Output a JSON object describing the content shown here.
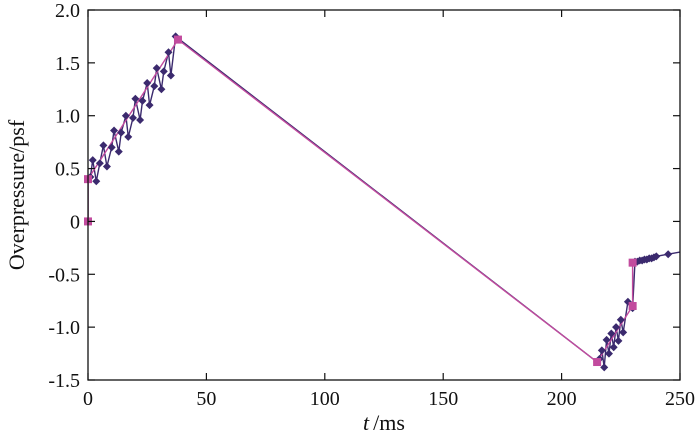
{
  "chart_data": {
    "type": "line",
    "title": "",
    "xlabel": {
      "symbol": "t",
      "unit": "/ms"
    },
    "ylabel": "Overpressure/psf",
    "xlim": [
      0,
      250
    ],
    "ylim": [
      -1.5,
      2.0
    ],
    "xticks": [
      0,
      50,
      100,
      150,
      200,
      250
    ],
    "yticks": [
      -1.5,
      -1.0,
      -0.5,
      0,
      0.5,
      1.0,
      1.5,
      2.0
    ],
    "xtick_labels": [
      "0",
      "50",
      "100",
      "150",
      "200",
      "250"
    ],
    "ytick_labels": [
      "-1.5",
      "-1.0",
      "-0.5",
      "0",
      "0.5",
      "1.0",
      "1.5",
      "2.0"
    ],
    "grid": false,
    "legend": "none",
    "series": [
      {
        "color": "#3b2a6e",
        "marker": "diamond",
        "x": [
          0,
          0,
          1,
          2,
          3.5,
          5,
          6.5,
          8,
          10,
          11,
          13,
          14,
          16,
          17,
          19,
          20,
          22,
          23,
          25,
          26,
          28,
          29,
          31,
          32,
          34,
          35,
          37,
          215,
          216,
          217,
          218,
          219,
          220,
          221,
          222,
          223,
          224,
          225,
          226,
          228,
          230,
          231,
          232,
          233,
          234,
          235,
          236,
          237,
          238,
          239,
          240,
          245,
          250
        ],
        "y": [
          0,
          0.4,
          0.42,
          0.58,
          0.38,
          0.55,
          0.72,
          0.52,
          0.7,
          0.86,
          0.66,
          0.84,
          1.0,
          0.8,
          0.98,
          1.16,
          0.96,
          1.14,
          1.31,
          1.1,
          1.28,
          1.45,
          1.25,
          1.42,
          1.6,
          1.38,
          1.75,
          -1.33,
          -1.3,
          -1.22,
          -1.38,
          -1.12,
          -1.25,
          -1.06,
          -1.19,
          -1.0,
          -1.13,
          -0.93,
          -1.05,
          -0.76,
          -0.82,
          -0.38,
          -0.38,
          -0.37,
          -0.37,
          -0.36,
          -0.36,
          -0.35,
          -0.35,
          -0.34,
          -0.33,
          -0.31,
          -0.29
        ]
      },
      {
        "color": "#c24b9e",
        "marker": "square",
        "x": [
          0,
          0,
          38,
          215,
          230,
          230
        ],
        "y": [
          0,
          0.4,
          1.72,
          -1.33,
          -0.8,
          -0.39
        ]
      }
    ]
  }
}
